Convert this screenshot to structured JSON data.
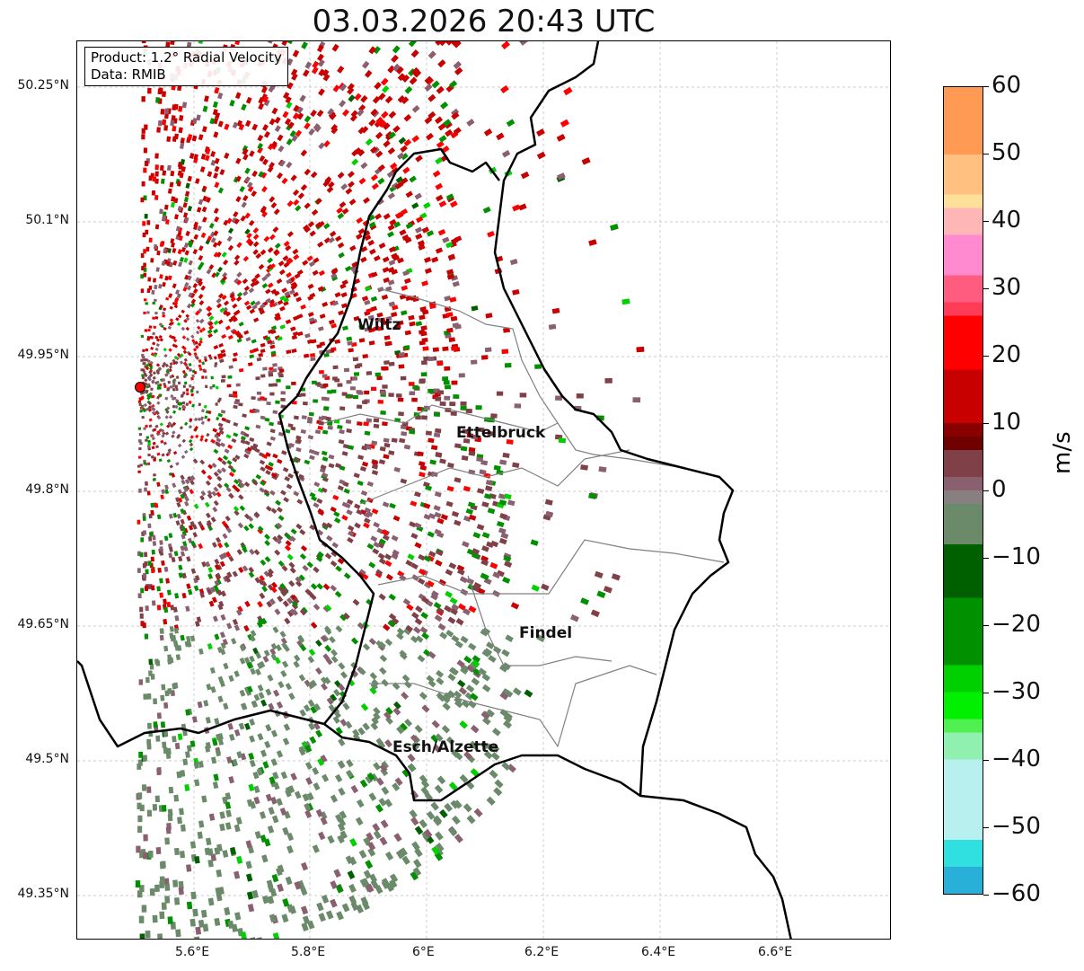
{
  "title": "03.03.2026 20:43 UTC",
  "info": {
    "product": "Product: 1.2° Radial Velocity",
    "data": "Data: RMIB"
  },
  "axes": {
    "lat_ticks": [
      "50.25°N",
      "50.1°N",
      "49.95°N",
      "49.8°N",
      "49.65°N",
      "49.5°N",
      "49.35°N"
    ],
    "lon_ticks": [
      "5.6°E",
      "5.8°E",
      "6°E",
      "6.2°E",
      "6.4°E",
      "6.6°E"
    ]
  },
  "cities": [
    {
      "name": "Wiltz"
    },
    {
      "name": "Ettelbruck"
    },
    {
      "name": "Findel"
    },
    {
      "name": "Esch/Alzette"
    }
  ],
  "colorbar": {
    "label": "m/s",
    "ticks": [
      "60",
      "50",
      "40",
      "30",
      "20",
      "10",
      "0",
      "−10",
      "−20",
      "−30",
      "−40",
      "−50",
      "−60"
    ],
    "range": [
      -60,
      60
    ]
  },
  "colors": {
    "radar_site": "#ff0000",
    "border": "#000000",
    "communes": "#808080"
  }
}
